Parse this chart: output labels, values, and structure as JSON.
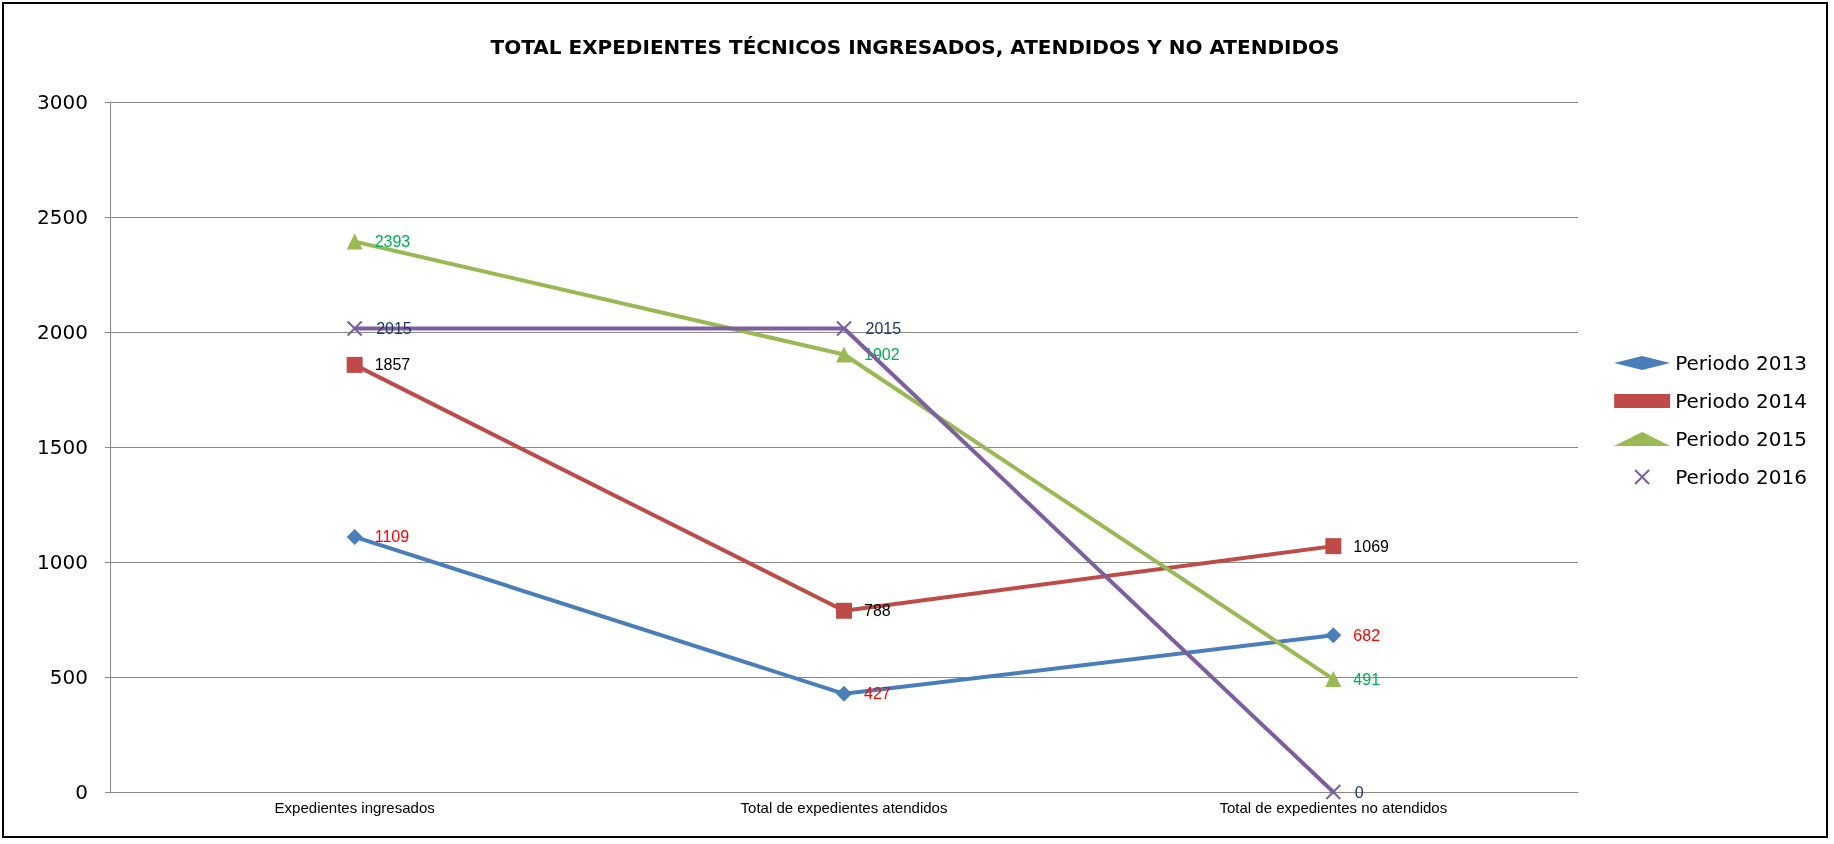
{
  "chart_data": {
    "type": "line",
    "title": "TOTAL EXPEDIENTES TÉCNICOS INGRESADOS, ATENDIDOS Y NO ATENDIDOS",
    "categories": [
      "Expedientes ingresados",
      "Total de expedientes atendidos",
      "Total de expedientes no atendidos"
    ],
    "series": [
      {
        "name": "Periodo 2013",
        "color": "#4a7ebb",
        "marker": "diamond",
        "values": [
          1109,
          427,
          682
        ]
      },
      {
        "name": "Periodo 2014",
        "color": "#be4b48",
        "marker": "square",
        "values": [
          1857,
          788,
          1069
        ]
      },
      {
        "name": "Periodo 2015",
        "color": "#98b954",
        "marker": "triangle",
        "values": [
          2393,
          1902,
          491
        ]
      },
      {
        "name": "Periodo 2016",
        "color": "#7d5fa0",
        "marker": "cross",
        "values": [
          2015,
          2015,
          0
        ]
      }
    ],
    "ylim": [
      0,
      3000
    ],
    "yticks": [
      0,
      500,
      1000,
      1500,
      2000,
      2500,
      3000
    ],
    "grid": "y",
    "legend": "right",
    "data_labels": true,
    "line_style": "solid"
  }
}
